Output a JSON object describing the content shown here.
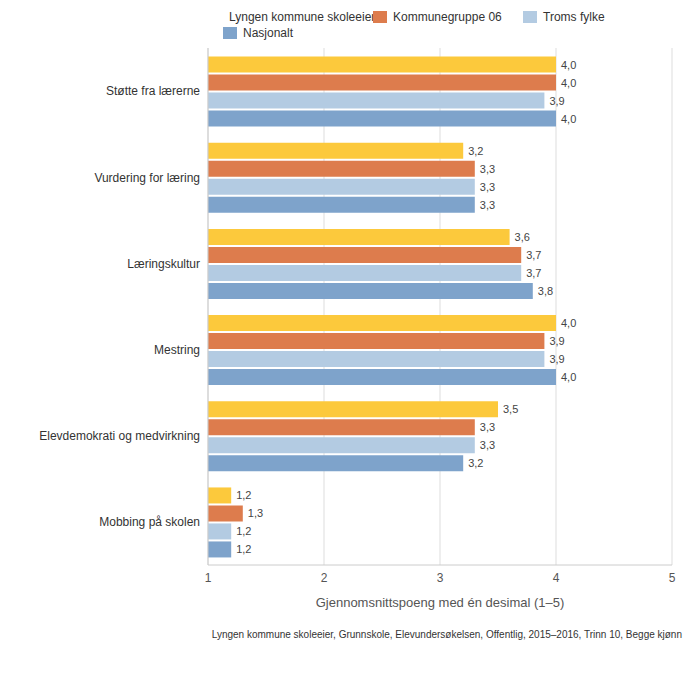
{
  "chart_data": {
    "type": "bar",
    "orientation": "horizontal",
    "categories": [
      "Støtte fra lærerne",
      "Vurdering for læring",
      "Læringskultur",
      "Mestring",
      "Elevdemokrati og medvirkning",
      "Mobbing på skolen"
    ],
    "series": [
      {
        "name": "Lyngen kommune skoleeier",
        "color": "#fcc93c",
        "values": [
          4.0,
          3.2,
          3.6,
          4.0,
          3.5,
          1.2
        ],
        "value_labels": [
          "4,0",
          "3,2",
          "3,6",
          "4,0",
          "3,5",
          "1,2"
        ]
      },
      {
        "name": "Kommunegruppe 06",
        "color": "#dd7c4d",
        "values": [
          4.0,
          3.3,
          3.7,
          3.9,
          3.3,
          1.3
        ],
        "value_labels": [
          "4,0",
          "3,3",
          "3,7",
          "3,9",
          "3,3",
          "1,3"
        ]
      },
      {
        "name": "Troms fylke",
        "color": "#b3cbe2",
        "values": [
          3.9,
          3.3,
          3.7,
          3.9,
          3.3,
          1.2
        ],
        "value_labels": [
          "3,9",
          "3,3",
          "3,7",
          "3,9",
          "3,3",
          "1,2"
        ]
      },
      {
        "name": "Nasjonalt",
        "color": "#7ea3cb",
        "values": [
          4.0,
          3.3,
          3.8,
          4.0,
          3.2,
          1.2
        ],
        "value_labels": [
          "4,0",
          "3,3",
          "3,8",
          "4,0",
          "3,2",
          "1,2"
        ]
      }
    ],
    "x_label": "Gjennomsnittspoeng med én desimal (1–5)",
    "xlim": [
      1,
      5
    ],
    "xticks": [
      1,
      2,
      3,
      4,
      5
    ],
    "grid": true,
    "legend": "top",
    "data_labels": true,
    "footnote": "Lyngen kommune skoleeier, Grunnskole, Elevundersøkelsen, Offentlig, 2015–2016, Trinn 10, Begge kjønn"
  }
}
